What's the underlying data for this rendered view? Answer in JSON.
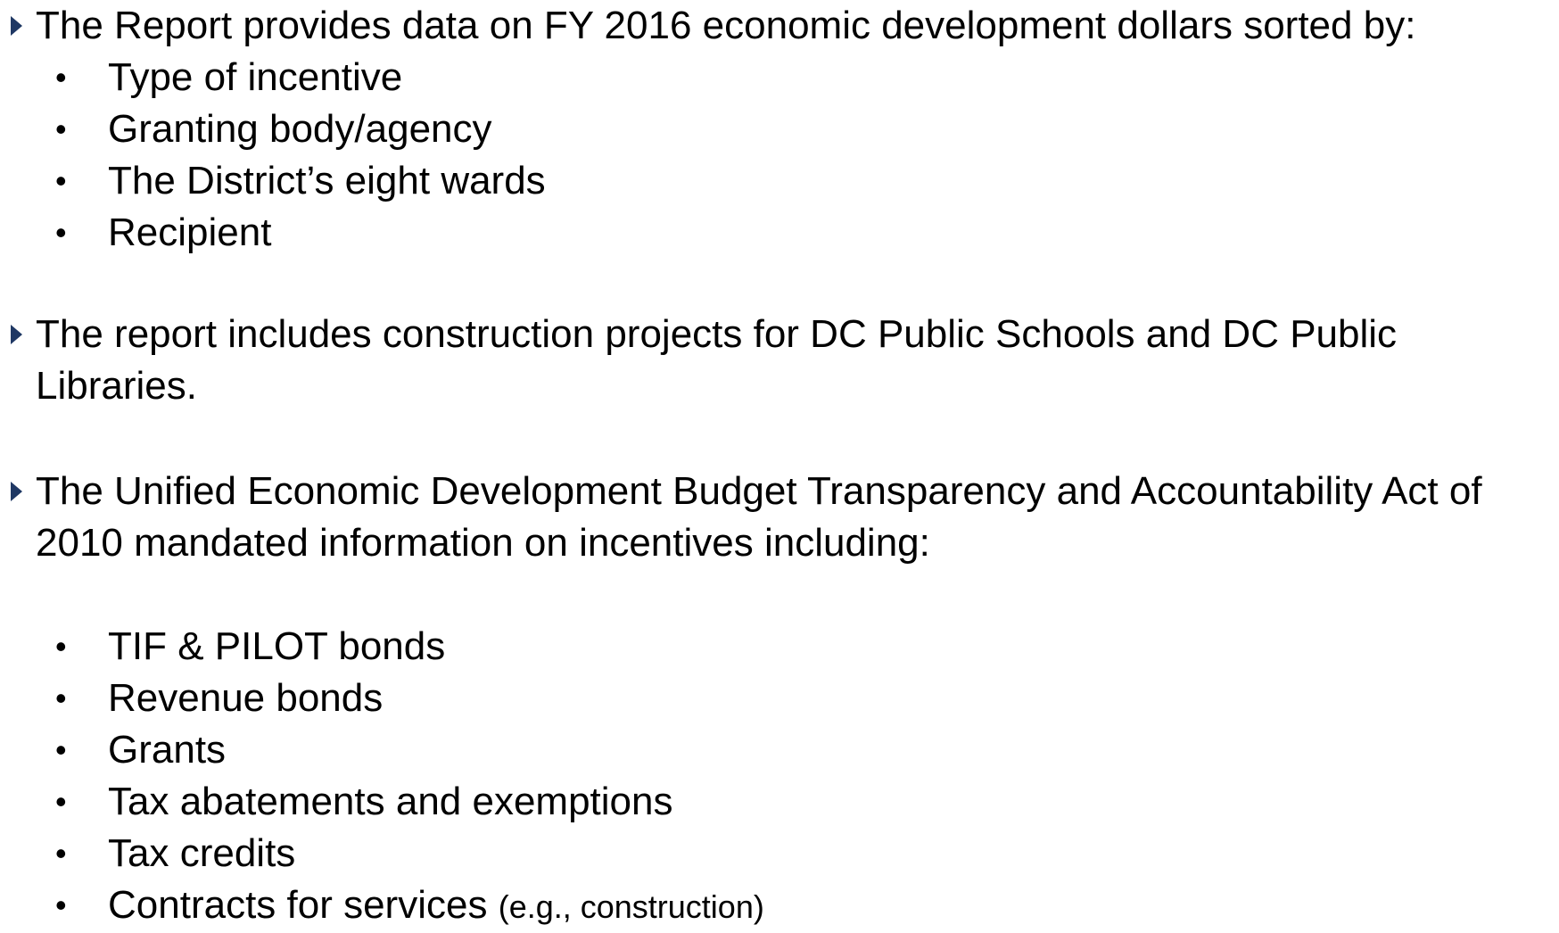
{
  "bullets": [
    {
      "text": "The Report provides data on FY 2016 economic development dollars sorted by:",
      "items": [
        "Type of incentive",
        "Granting body/agency",
        "The District’s eight wards",
        "Recipient"
      ]
    },
    {
      "text": "The report includes construction projects for DC Public Schools and DC Public Libraries.",
      "items": []
    },
    {
      "text": "The Unified Economic Development Budget Transparency and Accountability Act of 2010 mandated information on incentives including:",
      "items": [
        "TIF & PILOT bonds",
        "Revenue bonds",
        "Grants",
        "Tax abatements and exemptions",
        "Tax credits",
        {
          "text": "Contracts for services",
          "note": "(e.g., construction)"
        }
      ]
    }
  ]
}
